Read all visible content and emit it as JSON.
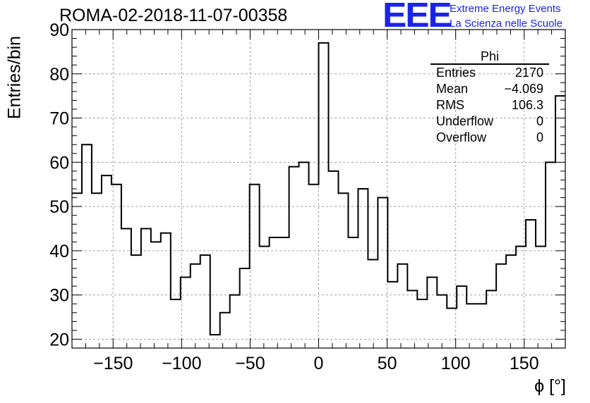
{
  "header": {
    "title": "ROMA-02-2018-11-07-00358"
  },
  "logo": {
    "text": "EEE",
    "line1": "Extreme Energy Events",
    "line2": "La Scienza nelle Scuole"
  },
  "stats_box": {
    "title": "Phi",
    "rows": [
      {
        "label": "Entries",
        "value": "2170"
      },
      {
        "label": "Mean",
        "value": "−4.069"
      },
      {
        "label": "RMS",
        "value": "106.3"
      },
      {
        "label": "Underflow",
        "value": "0"
      },
      {
        "label": "Overflow",
        "value": "0"
      }
    ]
  },
  "chart_data": {
    "type": "histogram",
    "title": "ROMA-02-2018-11-07-00358",
    "xlabel": "ϕ [°]",
    "ylabel": "Entries/bin",
    "xlim": [
      -180,
      180
    ],
    "ylim": [
      18,
      90
    ],
    "grid": true,
    "bin_width": 7.2,
    "bin_edges_start": -180,
    "values": [
      53,
      64,
      53,
      57,
      55,
      45,
      39,
      45,
      42,
      44,
      29,
      34,
      37,
      39,
      21,
      26,
      30,
      36,
      55,
      41,
      43,
      43,
      59,
      60,
      55,
      87,
      58,
      53,
      43,
      54,
      38,
      52,
      33,
      37,
      31,
      29,
      34,
      30,
      27,
      32,
      28,
      28,
      31,
      37,
      39,
      41,
      47,
      41,
      60,
      75
    ],
    "x_ticks": [
      -150,
      -100,
      -50,
      0,
      50,
      100,
      150
    ],
    "x_tick_labels": [
      "−150",
      "−100",
      "−50",
      "0",
      "50",
      "100",
      "150"
    ],
    "y_ticks": [
      20,
      30,
      40,
      50,
      60,
      70,
      80,
      90
    ],
    "y_tick_labels": [
      "20",
      "30",
      "40",
      "50",
      "60",
      "70",
      "80",
      "90"
    ]
  }
}
